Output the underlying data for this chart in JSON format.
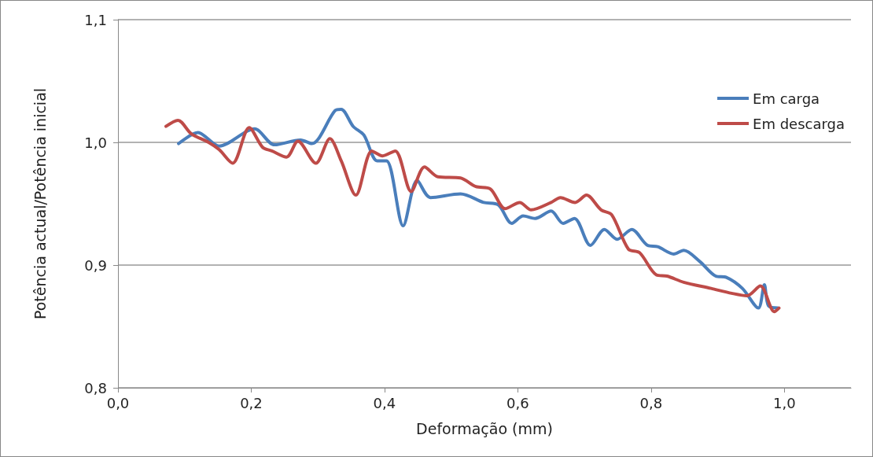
{
  "chart_data": {
    "type": "line",
    "xlabel": "Deformação (mm)",
    "ylabel": "Potência actual/Potência inicial",
    "xlim": [
      0,
      1.1
    ],
    "xticks": [
      {
        "value": 0,
        "label": "0,0"
      },
      {
        "value": 0.2,
        "label": "0,2"
      },
      {
        "value": 0.4,
        "label": "0,4"
      },
      {
        "value": 0.6,
        "label": "0,6"
      },
      {
        "value": 0.8,
        "label": "0,8"
      },
      {
        "value": 1.0,
        "label": "1,0"
      }
    ],
    "ylim": [
      0.8,
      1.1
    ],
    "yticks": [
      {
        "value": 0.8,
        "label": "0,8"
      },
      {
        "value": 0.9,
        "label": "0,9"
      },
      {
        "value": 1.0,
        "label": "1,0"
      },
      {
        "value": 1.1,
        "label": "1,1"
      }
    ],
    "grid": "y",
    "legend": "top right",
    "marker": "none",
    "line_style": "solid",
    "series": [
      {
        "name": "Em carga",
        "color": "#4a7ebb",
        "x": [
          0.091,
          0.12,
          0.152,
          0.205,
          0.235,
          0.274,
          0.291,
          0.326,
          0.335,
          0.353,
          0.369,
          0.389,
          0.403,
          0.428,
          0.449,
          0.469,
          0.514,
          0.549,
          0.571,
          0.591,
          0.608,
          0.626,
          0.65,
          0.668,
          0.685,
          0.709,
          0.73,
          0.749,
          0.771,
          0.795,
          0.81,
          0.834,
          0.849,
          0.873,
          0.897,
          0.913,
          0.937,
          0.961,
          0.97,
          0.976,
          0.99
        ],
        "values": [
          0.999,
          1.008,
          0.997,
          1.011,
          0.998,
          1.002,
          0.999,
          1.026,
          1.027,
          1.013,
          1.006,
          0.985,
          0.985,
          0.932,
          0.969,
          0.955,
          0.958,
          0.951,
          0.949,
          0.934,
          0.94,
          0.938,
          0.944,
          0.934,
          0.938,
          0.916,
          0.929,
          0.921,
          0.929,
          0.916,
          0.915,
          0.909,
          0.912,
          0.903,
          0.891,
          0.89,
          0.881,
          0.865,
          0.884,
          0.867,
          0.865
        ]
      },
      {
        "name": "Em descarga",
        "color": "#be4b48",
        "x": [
          0.072,
          0.09,
          0.11,
          0.136,
          0.152,
          0.172,
          0.197,
          0.217,
          0.231,
          0.253,
          0.27,
          0.297,
          0.318,
          0.335,
          0.357,
          0.381,
          0.397,
          0.416,
          0.44,
          0.46,
          0.48,
          0.514,
          0.537,
          0.559,
          0.581,
          0.603,
          0.62,
          0.65,
          0.664,
          0.686,
          0.703,
          0.725,
          0.741,
          0.766,
          0.783,
          0.808,
          0.824,
          0.849,
          0.89,
          0.921,
          0.944,
          0.964,
          0.985,
          0.992
        ],
        "values": [
          1.013,
          1.018,
          1.007,
          1.0,
          0.994,
          0.983,
          1.012,
          0.996,
          0.993,
          0.988,
          1.001,
          0.983,
          1.003,
          0.985,
          0.957,
          0.993,
          0.989,
          0.993,
          0.96,
          0.98,
          0.972,
          0.971,
          0.964,
          0.962,
          0.946,
          0.951,
          0.945,
          0.951,
          0.955,
          0.951,
          0.957,
          0.945,
          0.941,
          0.913,
          0.91,
          0.892,
          0.891,
          0.886,
          0.881,
          0.877,
          0.875,
          0.883,
          0.862,
          0.865
        ]
      }
    ]
  }
}
